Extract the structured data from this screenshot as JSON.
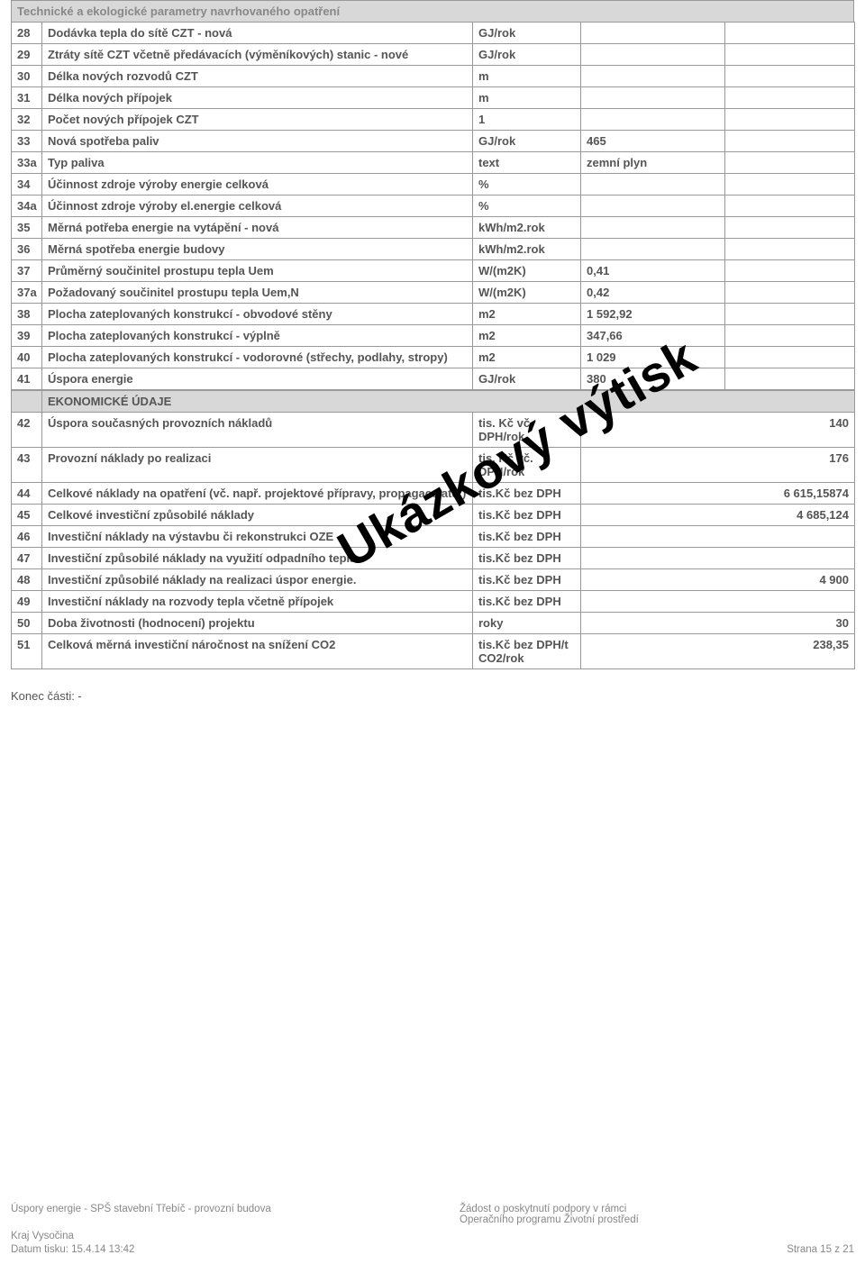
{
  "section_header": "Technické a ekologické parametry navrhovaného opatření",
  "rows": [
    {
      "num": "28",
      "desc": "Dodávka tepla do sítě CZT - nová",
      "unit": "GJ/rok",
      "val": "",
      "extra": ""
    },
    {
      "num": "29",
      "desc": "Ztráty sítě CZT včetně předávacích (výměníkových) stanic - nové",
      "unit": "GJ/rok",
      "val": "",
      "extra": ""
    },
    {
      "num": "30",
      "desc": "Délka nových rozvodů CZT",
      "unit": "m",
      "val": "",
      "extra": ""
    },
    {
      "num": "31",
      "desc": "Délka nových přípojek",
      "unit": "m",
      "val": "",
      "extra": ""
    },
    {
      "num": "32",
      "desc": "Počet nových přípojek CZT",
      "unit": "1",
      "val": "",
      "extra": ""
    },
    {
      "num": "33",
      "desc": "Nová spotřeba paliv",
      "unit": "GJ/rok",
      "val": "465",
      "extra": ""
    },
    {
      "num": "33a",
      "desc": "Typ paliva",
      "unit": "text",
      "val": "zemní plyn",
      "extra": "",
      "val_align": "left"
    },
    {
      "num": "34",
      "desc": "Účinnost zdroje výroby energie celková",
      "unit": "%",
      "val": "",
      "extra": ""
    },
    {
      "num": "34a",
      "desc": "Účinnost zdroje výroby el.energie celková",
      "unit": "%",
      "val": "",
      "extra": ""
    },
    {
      "num": "35",
      "desc": "Měrná potřeba energie na vytápění - nová",
      "unit": "kWh/m2.rok",
      "val": "",
      "extra": ""
    },
    {
      "num": "36",
      "desc": "Měrná spotřeba energie budovy",
      "unit": "kWh/m2.rok",
      "val": "",
      "extra": ""
    },
    {
      "num": "37",
      "desc": "Průměrný součinitel prostupu tepla Uem",
      "unit": "W/(m2K)",
      "val": "0,41",
      "extra": ""
    },
    {
      "num": "37a",
      "desc": "Požadovaný součinitel prostupu tepla Uem,N",
      "unit": "W/(m2K)",
      "val": "0,42",
      "extra": ""
    },
    {
      "num": "38",
      "desc": "Plocha zateplovaných konstrukcí - obvodové stěny",
      "unit": "m2",
      "val": "1 592,92",
      "extra": ""
    },
    {
      "num": "39",
      "desc": "Plocha zateplovaných konstrukcí - výplně",
      "unit": "m2",
      "val": "347,66",
      "extra": ""
    },
    {
      "num": "40",
      "desc": "Plocha zateplovaných konstrukcí - vodorovné (střechy, podlahy, stropy)",
      "unit": "m2",
      "val": "1 029",
      "extra": ""
    },
    {
      "num": "41",
      "desc": "Úspora energie",
      "unit": "GJ/rok",
      "val": "380",
      "extra": ""
    }
  ],
  "econ_header": "EKONOMICKÉ ÚDAJE",
  "econ_rows": [
    {
      "num": "42",
      "desc": "Úspora současných provozních nákladů",
      "unit": "tis. Kč vč. DPH/rok",
      "val": "140"
    },
    {
      "num": "43",
      "desc": "Provozní náklady po realizaci",
      "unit": "tis. Kč vč. DPH/rok",
      "val": "176"
    },
    {
      "num": "44",
      "desc": "Celkové náklady na opatření (vč. např. projektové přípravy, propagace atd.)",
      "unit": "tis.Kč bez DPH",
      "val": "6 615,15874"
    },
    {
      "num": "45",
      "desc": "Celkové investiční způsobilé náklady",
      "unit": "tis.Kč bez DPH",
      "val": "4 685,124"
    },
    {
      "num": "46",
      "desc": "Investiční náklady na výstavbu či rekonstrukci OZE",
      "unit": "tis.Kč bez DPH",
      "val": ""
    },
    {
      "num": "47",
      "desc": "Investiční způsobilé náklady na využití odpadního tepla",
      "unit": "tis.Kč bez DPH",
      "val": ""
    },
    {
      "num": "48",
      "desc": "Investiční způsobilé náklady na realizaci úspor energie.",
      "unit": "tis.Kč bez DPH",
      "val": "4 900"
    },
    {
      "num": "49",
      "desc": "Investiční náklady na rozvody tepla včetně přípojek",
      "unit": "tis.Kč bez DPH",
      "val": ""
    },
    {
      "num": "50",
      "desc": "Doba životnosti (hodnocení) projektu",
      "unit": "roky",
      "val": "30"
    },
    {
      "num": "51",
      "desc": "Celková měrná investiční náročnost na snížení CO2",
      "unit": "tis.Kč bez DPH/t CO2/rok",
      "val": "238,35"
    }
  ],
  "end_text": "Konec části: -",
  "watermark": "Ukázkový výtisk",
  "footer": {
    "left": "Úspory energie - SPŠ stavební Třebíč - provozní budova",
    "center1": "Žádost o poskytnutí podpory v rámci",
    "center2": "Operačního programu Životní prostředí",
    "mid": "Kraj Vysočina",
    "bottom_left": "Datum tisku: 15.4.14 13:42",
    "bottom_right": "Strana 15 z 21"
  },
  "styling": {
    "border_color": "#999999",
    "header_bg": "#d8d8d8",
    "text_color": "#555555",
    "footer_color": "#888888",
    "font_size_body": 13,
    "font_size_footer": 11.5,
    "col_widths": {
      "num": 34,
      "desc": 478,
      "unit": 120,
      "val": 160,
      "extra": 144
    }
  }
}
